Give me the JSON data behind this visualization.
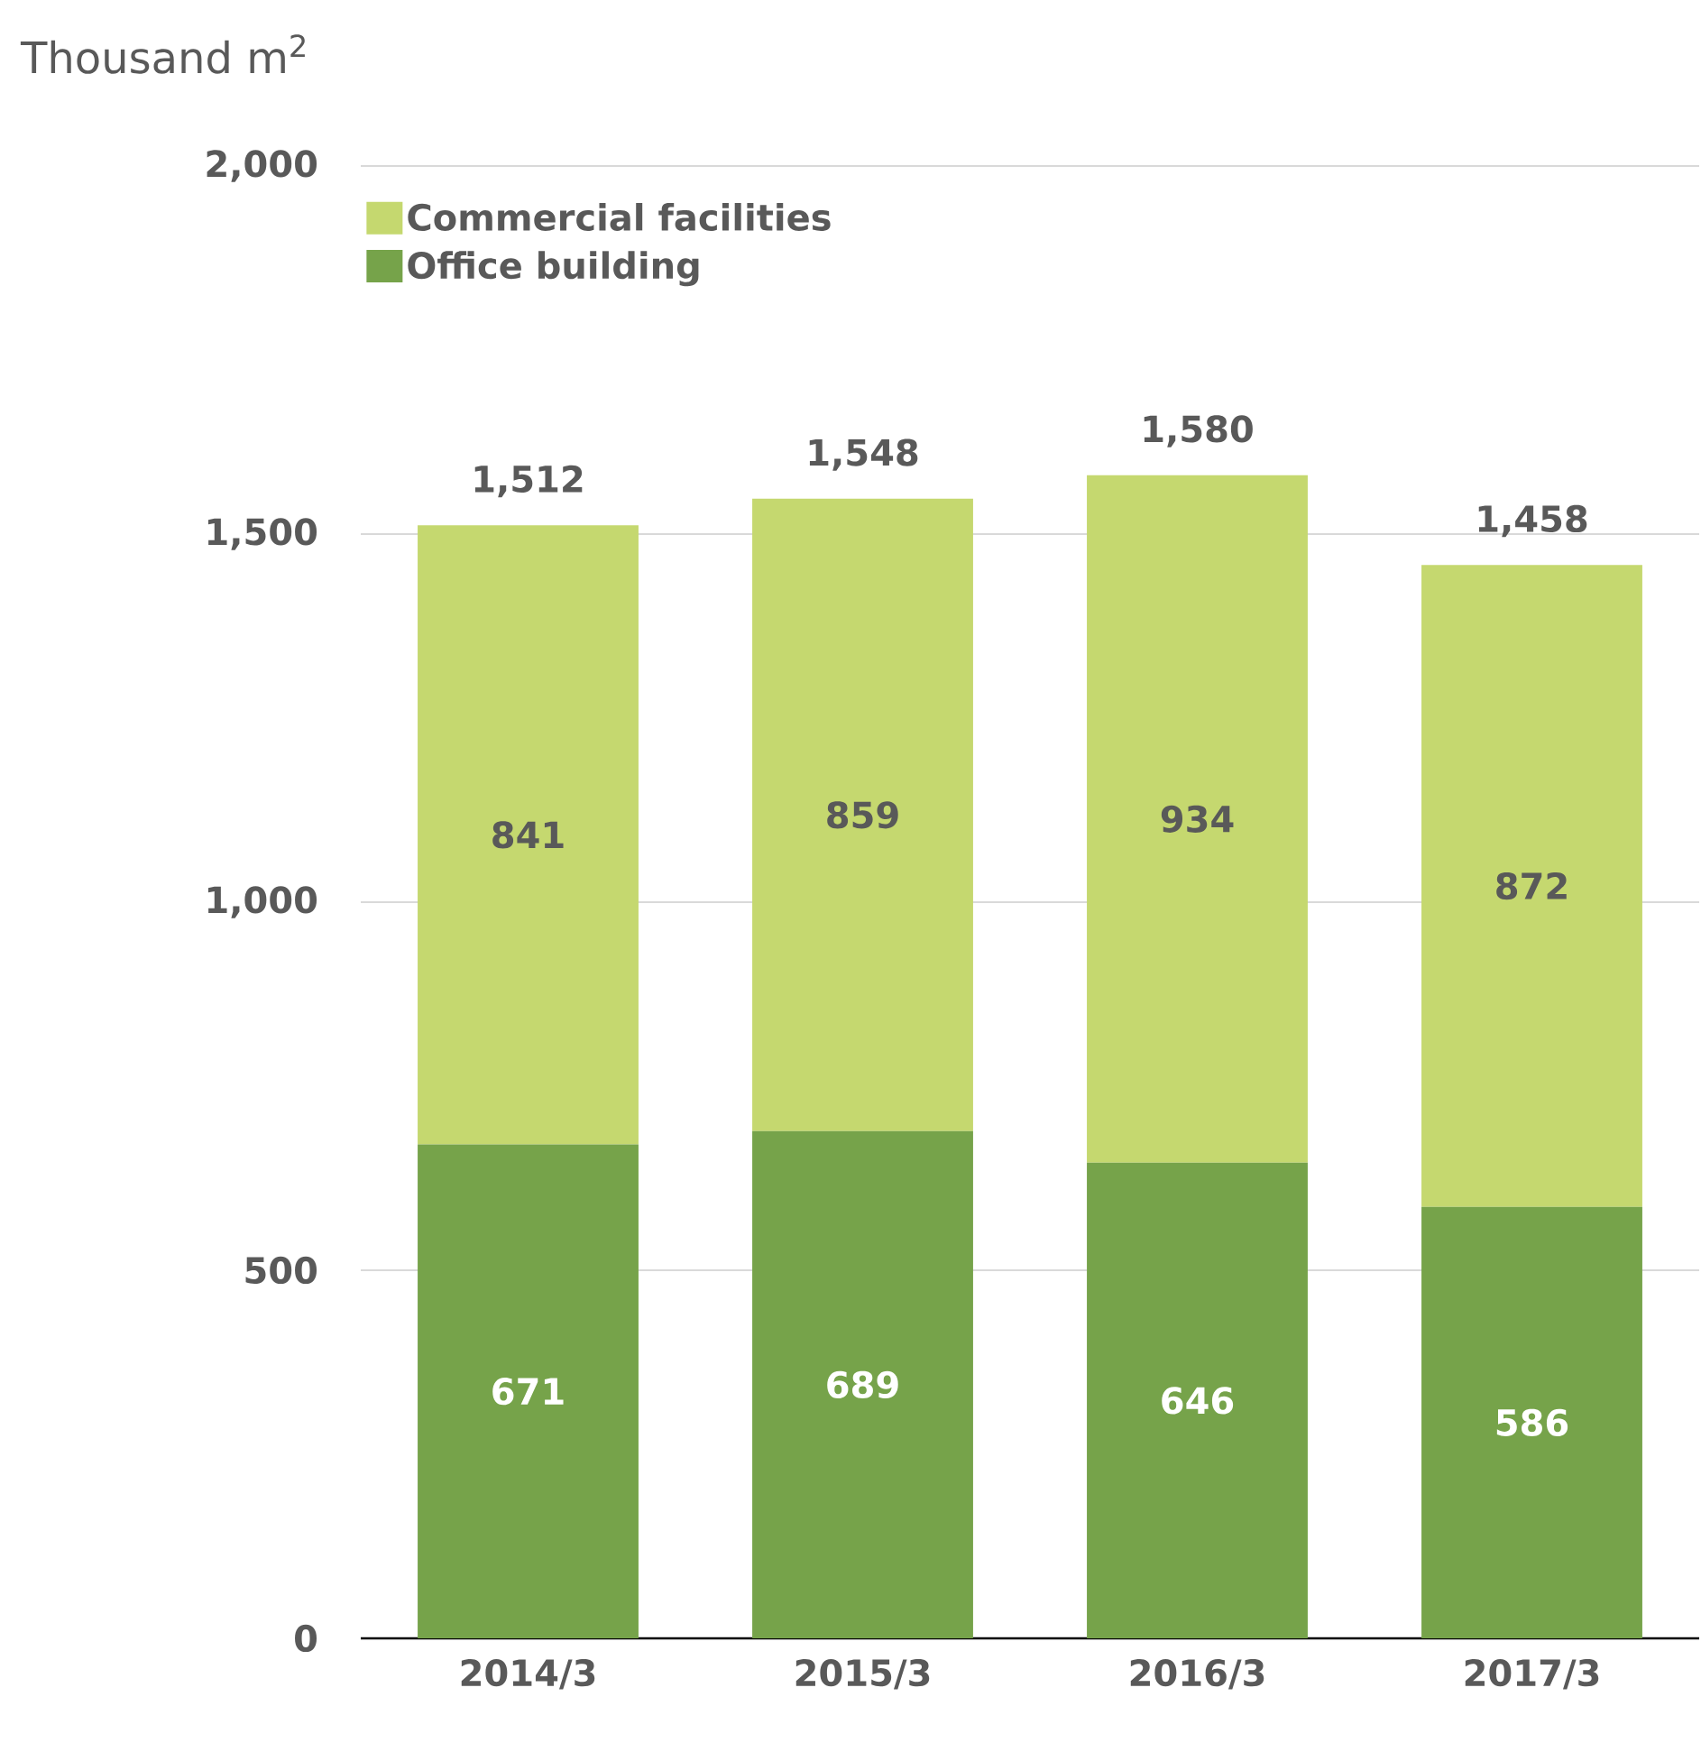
{
  "chart_data": {
    "type": "bar",
    "stacked": true,
    "ylabel": "Thousand m$^{2}$",
    "categories": [
      "2014/3",
      "2015/3",
      "2016/3",
      "2017/3"
    ],
    "series": [
      {
        "name": "Office building",
        "color": "#76a34a",
        "values": [
          671,
          689,
          646,
          586
        ]
      },
      {
        "name": "Commercial facilities",
        "color": "#c5d86f",
        "values": [
          841,
          859,
          934,
          872
        ]
      }
    ],
    "ylim": [
      0,
      2000
    ],
    "yticks": [
      0,
      {
        "value": 500,
        "label": "500"
      },
      {
        "value": 1000,
        "label": "1,000"
      },
      {
        "value": 1500,
        "label": "1,500"
      },
      {
        "value": 2000,
        "label": "2,000"
      }
    ],
    "grid": "y",
    "legend": "top left",
    "data_labels": true,
    "totals": [
      "1,512",
      "1,548",
      "1,580",
      "1,458"
    ]
  }
}
